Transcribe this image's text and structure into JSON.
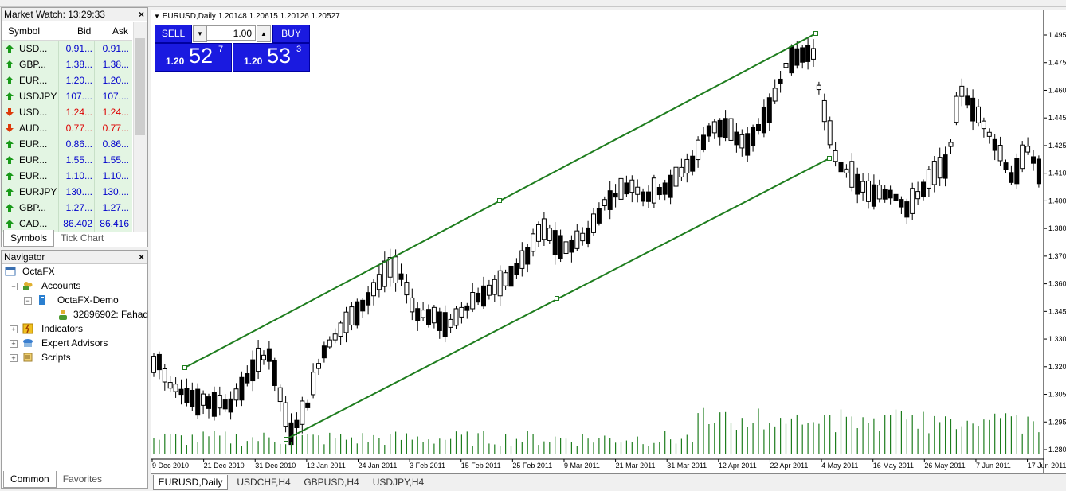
{
  "market_watch": {
    "title": "Market Watch: 13:29:33",
    "columns": [
      "Symbol",
      "Bid",
      "Ask"
    ],
    "rows": [
      {
        "symbol": "USD...",
        "bid": "0.91...",
        "ask": "0.91...",
        "dir": "up"
      },
      {
        "symbol": "GBP...",
        "bid": "1.38...",
        "ask": "1.38...",
        "dir": "up"
      },
      {
        "symbol": "EUR...",
        "bid": "1.20...",
        "ask": "1.20...",
        "dir": "up"
      },
      {
        "symbol": "USDJPY",
        "bid": "107....",
        "ask": "107....",
        "dir": "up"
      },
      {
        "symbol": "USD...",
        "bid": "1.24...",
        "ask": "1.24...",
        "dir": "down"
      },
      {
        "symbol": "AUD...",
        "bid": "0.77...",
        "ask": "0.77...",
        "dir": "down"
      },
      {
        "symbol": "EUR...",
        "bid": "0.86...",
        "ask": "0.86...",
        "dir": "up"
      },
      {
        "symbol": "EUR...",
        "bid": "1.55...",
        "ask": "1.55...",
        "dir": "up"
      },
      {
        "symbol": "EUR...",
        "bid": "1.10...",
        "ask": "1.10...",
        "dir": "up"
      },
      {
        "symbol": "EURJPY",
        "bid": "130....",
        "ask": "130....",
        "dir": "up"
      },
      {
        "symbol": "GBP...",
        "bid": "1.27...",
        "ask": "1.27...",
        "dir": "up"
      },
      {
        "symbol": "CAD...",
        "bid": "86.402",
        "ask": "86.416",
        "dir": "up"
      }
    ],
    "tabs": [
      "Symbols",
      "Tick Chart"
    ],
    "close": "×"
  },
  "navigator": {
    "title": "Navigator",
    "close": "×",
    "items": {
      "root": "OctaFX",
      "accounts": "Accounts",
      "demo": "OctaFX-Demo",
      "account": "32896902: Fahad",
      "indicators": "Indicators",
      "experts": "Expert Advisors",
      "scripts": "Scripts"
    },
    "tabs": [
      "Common",
      "Favorites"
    ]
  },
  "chart": {
    "header": "EURUSD,Daily  1.20148 1.20615 1.20126 1.20527",
    "one_click": {
      "sell": "SELL",
      "buy": "BUY",
      "volume": "1.00",
      "sell_small": "1.20",
      "sell_big": "52",
      "sell_sup": "7",
      "buy_small": "1.20",
      "buy_big": "53",
      "buy_sup": "3"
    },
    "price_labels": [
      "1.495",
      "1.475",
      "1.460",
      "1.445",
      "1.425",
      "1.410",
      "1.400",
      "1.380",
      "1.370",
      "1.360",
      "1.345",
      "1.330",
      "1.320",
      "1.305",
      "1.295",
      "1.280"
    ],
    "date_labels": [
      "9 Dec 2010",
      "21 Dec 2010",
      "31 Dec 2010",
      "12 Jan 2011",
      "24 Jan 2011",
      "3 Feb 2011",
      "15 Feb 2011",
      "25 Feb 2011",
      "9 Mar 2011",
      "21 Mar 2011",
      "31 Mar 2011",
      "12 Apr 2011",
      "22 Apr 2011",
      "4 May 2011",
      "16 May 2011",
      "26 May 2011",
      "7 Jun 2011",
      "17 Jun 2011"
    ],
    "colors": {
      "channel": "#1e7d1e",
      "volume": "#1e7d1e",
      "candle": "#000000"
    }
  },
  "chart_tabs": [
    "EURUSD,Daily",
    "USDCHF,H4",
    "GBPUSD,H4",
    "USDJPY,H4"
  ]
}
